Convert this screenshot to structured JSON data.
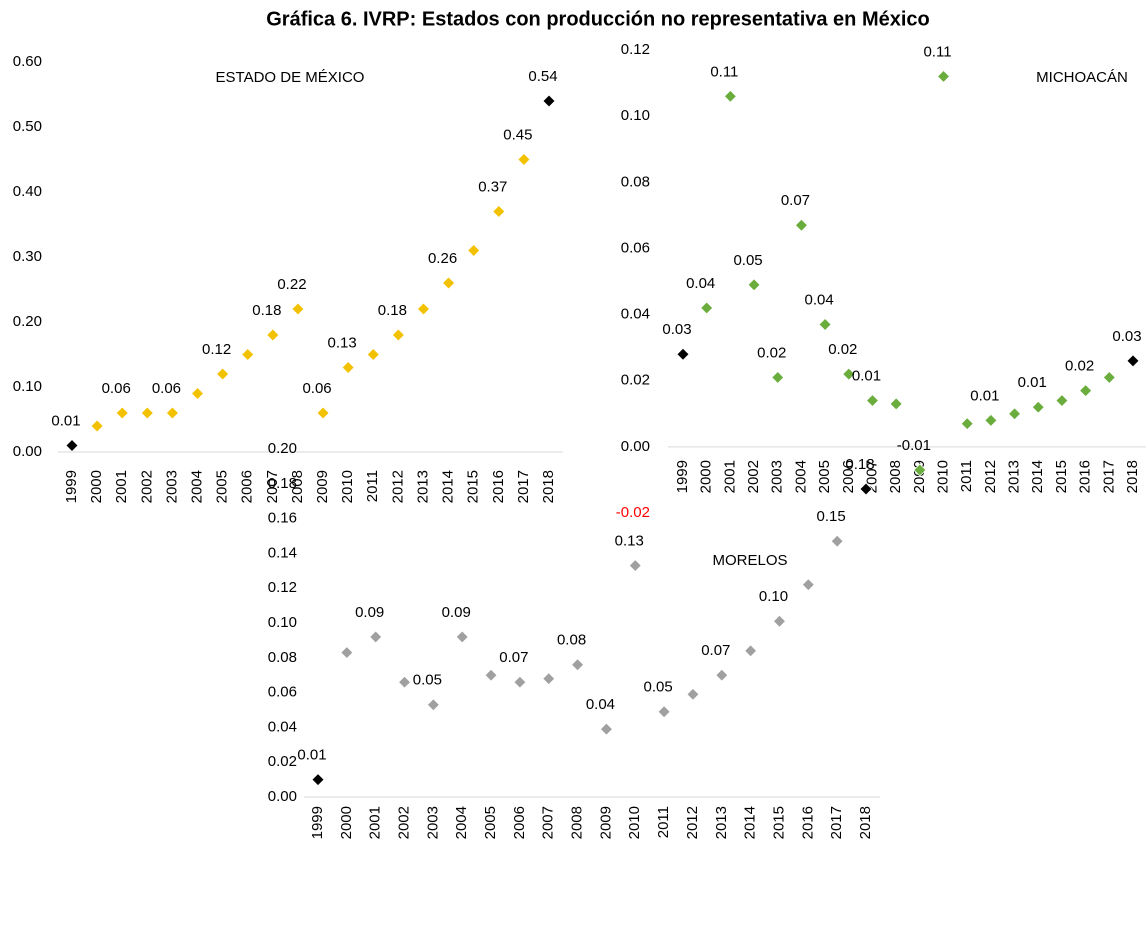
{
  "title": "Gráfica 6. IVRP: Estados con producción no representativa en México",
  "chart_data": [
    {
      "type": "scatter",
      "annotation": "ESTADO DE MÉXICO",
      "marker": "diamond",
      "color": "#f2c100",
      "end_color": "#000000",
      "categories": [
        "1999",
        "2000",
        "2001",
        "2002",
        "2003",
        "2004",
        "2005",
        "2006",
        "2007",
        "2008",
        "2009",
        "2010",
        "2011",
        "2012",
        "2013",
        "2014",
        "2015",
        "2016",
        "2017",
        "2018"
      ],
      "values": [
        0.01,
        0.04,
        0.06,
        0.06,
        0.06,
        0.09,
        0.12,
        0.15,
        0.18,
        0.22,
        0.06,
        0.13,
        0.15,
        0.18,
        0.22,
        0.26,
        0.31,
        0.37,
        0.45,
        0.54
      ],
      "value_labels": [
        "0.01",
        null,
        "0.06",
        null,
        "0.06",
        null,
        "0.12",
        null,
        "0.18",
        "0.22",
        "0.06",
        "0.13",
        null,
        "0.18",
        null,
        "0.26",
        null,
        "0.37",
        "0.45",
        "0.54"
      ],
      "ylim": [
        0,
        0.6
      ],
      "yticks": [
        {
          "value": 0,
          "label": "0.00"
        },
        {
          "value": 0.1,
          "label": "0.10"
        },
        {
          "value": 0.2,
          "label": "0.20"
        },
        {
          "value": 0.3,
          "label": "0.30"
        },
        {
          "value": 0.4,
          "label": "0.40"
        },
        {
          "value": 0.5,
          "label": "0.50"
        },
        {
          "value": 0.6,
          "label": "0.60"
        }
      ]
    },
    {
      "type": "scatter",
      "annotation": "MICHOACÁN",
      "marker": "diamond",
      "color": "#6aad3c",
      "end_color": "#000000",
      "negative_tick_color": "#ff0000",
      "categories": [
        "1999",
        "2000",
        "2001",
        "2002",
        "2003",
        "2004",
        "2005",
        "2006",
        "2007",
        "2008",
        "2009",
        "2010",
        "2011",
        "2012",
        "2013",
        "2014",
        "2015",
        "2016",
        "2017",
        "2018"
      ],
      "values": [
        0.028,
        0.042,
        0.106,
        0.049,
        0.021,
        0.067,
        0.037,
        0.022,
        0.014,
        0.013,
        -0.007,
        0.112,
        0.007,
        0.008,
        0.01,
        0.012,
        0.014,
        0.017,
        0.021,
        0.026
      ],
      "value_labels": [
        "0.03",
        "0.04",
        "0.11",
        "0.05",
        "0.02",
        "0.07",
        "0.04",
        "0.02",
        "0.01",
        null,
        "-0.01",
        "0.11",
        null,
        "0.01",
        null,
        "0.01",
        null,
        "0.02",
        null,
        "0.03"
      ],
      "ylim": [
        -0.02,
        0.12
      ],
      "yticks": [
        {
          "value": -0.02,
          "label": "-0.02"
        },
        {
          "value": 0,
          "label": "0.00"
        },
        {
          "value": 0.02,
          "label": "0.02"
        },
        {
          "value": 0.04,
          "label": "0.04"
        },
        {
          "value": 0.06,
          "label": "0.06"
        },
        {
          "value": 0.08,
          "label": "0.08"
        },
        {
          "value": 0.1,
          "label": "0.10"
        },
        {
          "value": 0.12,
          "label": "0.12"
        }
      ]
    },
    {
      "type": "scatter",
      "annotation": "MORELOS",
      "marker": "diamond",
      "color": "#a0a0a0",
      "end_color": "#000000",
      "categories": [
        "1999",
        "2000",
        "2001",
        "2002",
        "2003",
        "2004",
        "2005",
        "2006",
        "2007",
        "2008",
        "2009",
        "2010",
        "2011",
        "2012",
        "2013",
        "2014",
        "2015",
        "2016",
        "2017",
        "2018"
      ],
      "values": [
        0.01,
        0.083,
        0.092,
        0.066,
        0.053,
        0.092,
        0.07,
        0.066,
        0.068,
        0.076,
        0.039,
        0.133,
        0.049,
        0.059,
        0.07,
        0.084,
        0.101,
        0.122,
        0.147,
        0.177
      ],
      "value_labels": [
        "0.01",
        null,
        "0.09",
        null,
        "0.05",
        "0.09",
        null,
        "0.07",
        null,
        "0.08",
        "0.04",
        "0.13",
        "0.05",
        null,
        "0.07",
        null,
        "0.10",
        null,
        "0.15",
        "0.18"
      ],
      "ylim": [
        0,
        0.2
      ],
      "yticks": [
        {
          "value": 0,
          "label": "0.00"
        },
        {
          "value": 0.02,
          "label": "0.02"
        },
        {
          "value": 0.04,
          "label": "0.04"
        },
        {
          "value": 0.06,
          "label": "0.06"
        },
        {
          "value": 0.08,
          "label": "0.08"
        },
        {
          "value": 0.1,
          "label": "0.10"
        },
        {
          "value": 0.12,
          "label": "0.12"
        },
        {
          "value": 0.14,
          "label": "0.14"
        },
        {
          "value": 0.16,
          "label": "0.16"
        },
        {
          "value": 0.18,
          "label": "0.18"
        },
        {
          "value": 0.2,
          "label": "0.20"
        }
      ]
    }
  ]
}
